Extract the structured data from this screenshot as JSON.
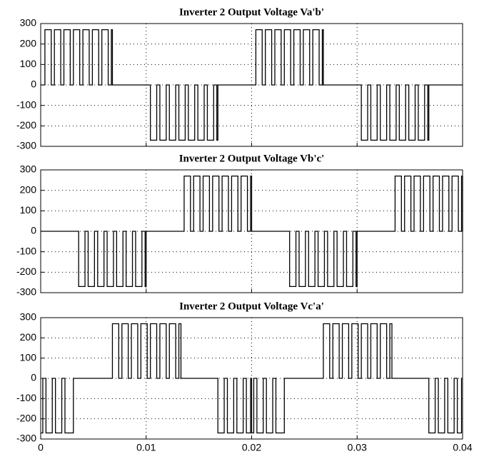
{
  "chart_data": [
    {
      "type": "line",
      "title": "Inverter 2 Output Voltage Va'b'",
      "drawstyle": "steps-post",
      "grid": true,
      "xtick_labels": false,
      "xlim": [
        0,
        0.04
      ],
      "xticks": [
        0,
        0.01,
        0.02,
        0.03,
        0.04
      ],
      "ylim": [
        -300,
        300
      ],
      "yticks": [
        -300,
        -200,
        -100,
        0,
        100,
        200,
        300
      ],
      "series": [
        {
          "color": "#000000",
          "x": [
            0,
            0.0004,
            0.001,
            0.0013,
            0.0019,
            0.0022,
            0.0028,
            0.0031,
            0.0037,
            0.004,
            0.0046,
            0.0049,
            0.0055,
            0.0058,
            0.0064,
            0.0067,
            0.0068,
            0.0104,
            0.011,
            0.0113,
            0.0119,
            0.0122,
            0.0128,
            0.0131,
            0.0137,
            0.014,
            0.0146,
            0.0149,
            0.0155,
            0.0158,
            0.0164,
            0.0167,
            0.0168,
            0.0204,
            0.021,
            0.0213,
            0.0219,
            0.0222,
            0.0228,
            0.0231,
            0.0237,
            0.024,
            0.0246,
            0.0249,
            0.0255,
            0.0258,
            0.0264,
            0.0267,
            0.0268,
            0.0304,
            0.031,
            0.0313,
            0.0319,
            0.0322,
            0.0328,
            0.0331,
            0.0337,
            0.034,
            0.0346,
            0.0349,
            0.0355,
            0.0358,
            0.0364,
            0.0367,
            0.0368
          ],
          "values": [
            0,
            270,
            0,
            270,
            0,
            270,
            0,
            270,
            0,
            270,
            0,
            270,
            0,
            270,
            0,
            270,
            0,
            -270,
            0,
            -270,
            0,
            -270,
            0,
            -270,
            0,
            -270,
            0,
            -270,
            0,
            -270,
            0,
            -270,
            0,
            270,
            0,
            270,
            0,
            270,
            0,
            270,
            0,
            270,
            0,
            270,
            0,
            270,
            0,
            270,
            0,
            -270,
            0,
            -270,
            0,
            -270,
            0,
            -270,
            0,
            -270,
            0,
            -270,
            0,
            -270,
            0,
            -270,
            0
          ]
        }
      ]
    },
    {
      "type": "line",
      "title": "Inverter 2 Output Voltage Vb'c'",
      "drawstyle": "steps-post",
      "grid": true,
      "xtick_labels": false,
      "xlim": [
        0,
        0.04
      ],
      "xticks": [
        0,
        0.01,
        0.02,
        0.03,
        0.04
      ],
      "ylim": [
        -300,
        300
      ],
      "yticks": [
        -300,
        -200,
        -100,
        0,
        100,
        200,
        300
      ],
      "series": [
        {
          "color": "#000000",
          "x": [
            0,
            0.0036,
            0.0042,
            0.0045,
            0.0051,
            0.0054,
            0.006,
            0.0063,
            0.0069,
            0.0072,
            0.0078,
            0.0081,
            0.0087,
            0.009,
            0.0096,
            0.0099,
            0.01,
            0.0136,
            0.0142,
            0.0145,
            0.0151,
            0.0154,
            0.016,
            0.0163,
            0.0169,
            0.0172,
            0.0178,
            0.0181,
            0.0187,
            0.019,
            0.0196,
            0.0199,
            0.02,
            0.0236,
            0.0242,
            0.0245,
            0.0251,
            0.0254,
            0.026,
            0.0263,
            0.0269,
            0.0272,
            0.0278,
            0.0281,
            0.0287,
            0.029,
            0.0296,
            0.0299,
            0.03,
            0.0336,
            0.0342,
            0.0345,
            0.0351,
            0.0354,
            0.036,
            0.0363,
            0.0369,
            0.0372,
            0.0378,
            0.0381,
            0.0387,
            0.039,
            0.0396,
            0.0399,
            0.04
          ],
          "values": [
            0,
            -270,
            0,
            -270,
            0,
            -270,
            0,
            -270,
            0,
            -270,
            0,
            -270,
            0,
            -270,
            0,
            -270,
            0,
            270,
            0,
            270,
            0,
            270,
            0,
            270,
            0,
            270,
            0,
            270,
            0,
            270,
            0,
            270,
            0,
            -270,
            0,
            -270,
            0,
            -270,
            0,
            -270,
            0,
            -270,
            0,
            -270,
            0,
            -270,
            0,
            -270,
            0,
            270,
            0,
            270,
            0,
            270,
            0,
            270,
            0,
            270,
            0,
            270,
            0,
            270,
            0,
            270,
            0
          ]
        }
      ]
    },
    {
      "type": "line",
      "title": "Inverter 2 Output Voltage Vc'a'",
      "drawstyle": "steps-post",
      "grid": true,
      "xtick_labels": true,
      "xlim": [
        0,
        0.04
      ],
      "xticks": [
        0,
        0.01,
        0.02,
        0.03,
        0.04
      ],
      "ylim": [
        -300,
        300
      ],
      "yticks": [
        -300,
        -200,
        -100,
        0,
        100,
        200,
        300
      ],
      "series": [
        {
          "color": "#000000",
          "x": [
            0,
            0.0002,
            0.0005,
            0.0011,
            0.0014,
            0.002,
            0.0023,
            0.0031,
            0.0068,
            0.0074,
            0.0077,
            0.0083,
            0.0086,
            0.0092,
            0.0095,
            0.0101,
            0.0104,
            0.011,
            0.0113,
            0.0119,
            0.0122,
            0.0128,
            0.0131,
            0.0133,
            0.0168,
            0.0174,
            0.0177,
            0.0183,
            0.0186,
            0.0192,
            0.0195,
            0.0199,
            0.02,
            0.0202,
            0.0205,
            0.0211,
            0.0214,
            0.022,
            0.0223,
            0.0231,
            0.0268,
            0.0274,
            0.0277,
            0.0283,
            0.0286,
            0.0292,
            0.0295,
            0.0301,
            0.0304,
            0.031,
            0.0313,
            0.0319,
            0.0322,
            0.0328,
            0.0331,
            0.0333,
            0.0368,
            0.0374,
            0.0377,
            0.0383,
            0.0386,
            0.0392,
            0.0395,
            0.0399
          ],
          "values": [
            -270,
            0,
            -270,
            0,
            -270,
            0,
            -270,
            0,
            270,
            0,
            270,
            0,
            270,
            0,
            270,
            0,
            270,
            0,
            270,
            0,
            270,
            0,
            270,
            0,
            -270,
            0,
            -270,
            0,
            -270,
            0,
            -270,
            0,
            -270,
            0,
            -270,
            0,
            -270,
            0,
            -270,
            0,
            270,
            0,
            270,
            0,
            270,
            0,
            270,
            0,
            270,
            0,
            270,
            0,
            270,
            0,
            270,
            0,
            -270,
            0,
            -270,
            0,
            -270,
            0,
            -270,
            0
          ]
        }
      ]
    }
  ]
}
